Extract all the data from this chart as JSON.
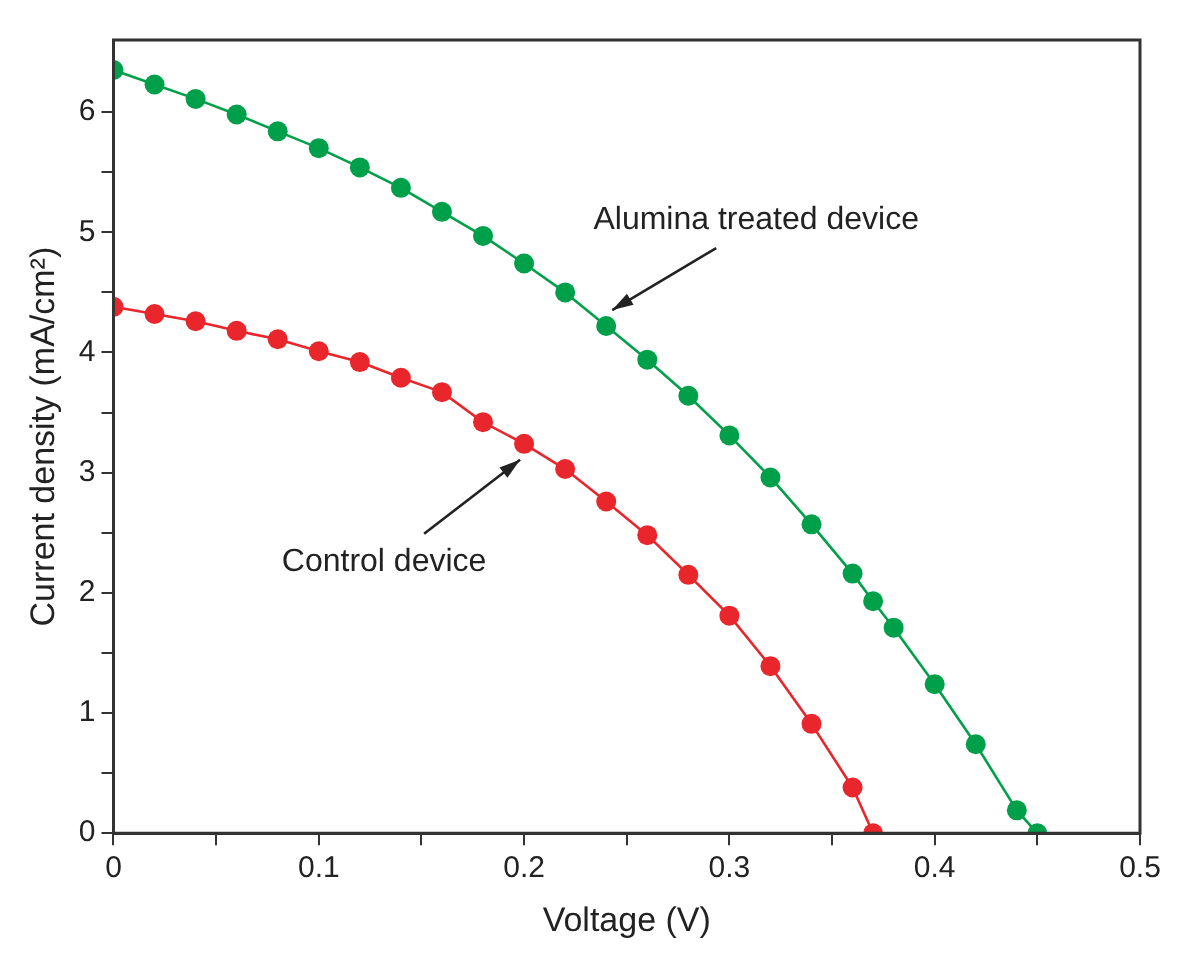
{
  "chart_data": {
    "type": "line",
    "xlabel": "Voltage (V)",
    "ylabel": "Current density (mA/cm²)",
    "xlim": [
      0,
      0.5
    ],
    "ylim": [
      0,
      6.6
    ],
    "xticks": [
      0,
      {
        "value": 0.05,
        "label": null
      },
      0.1,
      {
        "value": 0.15,
        "label": null
      },
      0.2,
      {
        "value": 0.25,
        "label": null
      },
      0.3,
      {
        "value": 0.35,
        "label": null
      },
      0.4,
      {
        "value": 0.45,
        "label": null
      },
      0.5
    ],
    "yticks": [
      0,
      {
        "value": 0.5,
        "label": null
      },
      1,
      {
        "value": 1.5,
        "label": null
      },
      2,
      {
        "value": 2.5,
        "label": null
      },
      3,
      {
        "value": 3.5,
        "label": null
      },
      4,
      {
        "value": 4.5,
        "label": null
      },
      5,
      {
        "value": 5.5,
        "label": null
      },
      6
    ],
    "marker": "circle",
    "line_style": "solid",
    "grid": false,
    "legend": false,
    "series": [
      {
        "color": "#00a04a",
        "x": [
          0,
          0.02,
          0.04,
          0.06,
          0.08,
          0.1,
          0.12,
          0.14,
          0.16,
          0.18,
          0.2,
          0.22,
          0.24,
          0.26,
          0.28,
          0.3,
          0.32,
          0.34,
          0.36,
          0.37,
          0.38,
          0.4,
          0.42,
          0.44,
          0.45
        ],
        "values": [
          6.35,
          6.23,
          6.11,
          5.98,
          5.84,
          5.7,
          5.54,
          5.37,
          5.17,
          4.97,
          4.74,
          4.5,
          4.22,
          3.94,
          3.64,
          3.31,
          2.96,
          2.57,
          2.16,
          1.93,
          1.71,
          1.24,
          0.74,
          0.19,
          0
        ]
      },
      {
        "color": "#e8262c",
        "x": [
          0,
          0.02,
          0.04,
          0.06,
          0.08,
          0.1,
          0.12,
          0.14,
          0.16,
          0.18,
          0.2,
          0.22,
          0.24,
          0.26,
          0.28,
          0.3,
          0.32,
          0.34,
          0.36,
          0.37
        ],
        "values": [
          4.38,
          4.32,
          4.26,
          4.18,
          4.11,
          4.01,
          3.92,
          3.79,
          3.67,
          3.42,
          3.24,
          3.03,
          2.76,
          2.48,
          2.15,
          1.81,
          1.39,
          0.91,
          0.38,
          0
        ]
      }
    ],
    "annotations": [
      {
        "text": "Alumina treated device",
        "x": 0.24,
        "y": 4.22
      },
      {
        "text": "Control device",
        "x": 0.2,
        "y": 3.24
      }
    ]
  }
}
